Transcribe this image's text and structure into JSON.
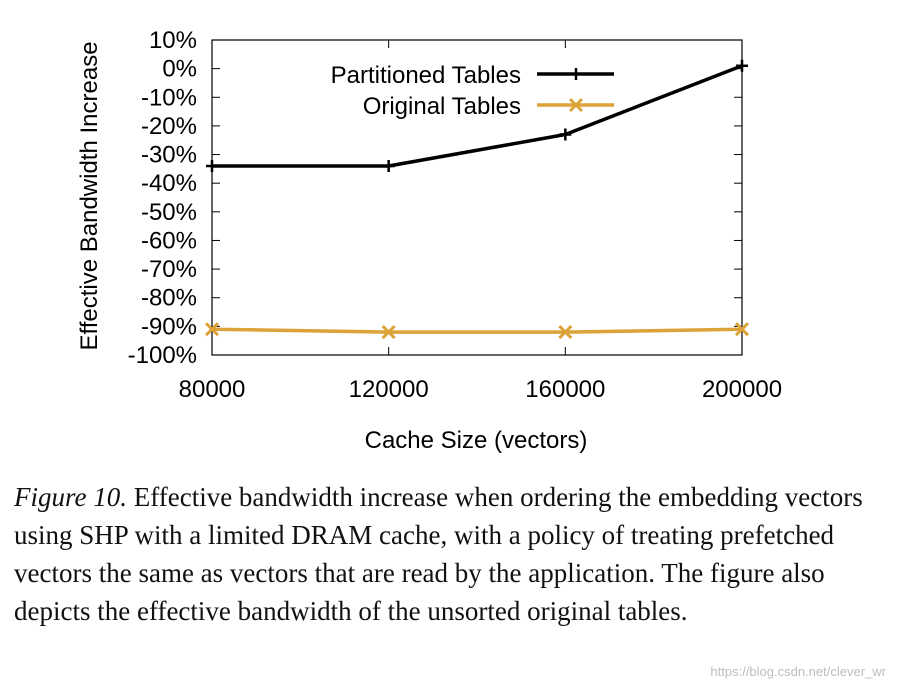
{
  "chart_data": {
    "type": "line",
    "xlabel": "Cache Size (vectors)",
    "ylabel": "Effective Bandwidth Increase",
    "categories": [
      "80000",
      "120000",
      "160000",
      "200000"
    ],
    "x": [
      80000,
      120000,
      160000,
      200000
    ],
    "xlim": [
      80000,
      200000
    ],
    "ylim": [
      -100,
      10
    ],
    "yticks": [
      10,
      0,
      -10,
      -20,
      -30,
      -40,
      -50,
      -60,
      -70,
      -80,
      -90,
      -100
    ],
    "ytick_labels": [
      "10%",
      "0%",
      "-10%",
      "-20%",
      "-30%",
      "-40%",
      "-50%",
      "-60%",
      "-70%",
      "-80%",
      "-90%",
      "-100%"
    ],
    "legend_position": "top-right",
    "grid": false,
    "series": [
      {
        "name": "Partitioned Tables",
        "values": [
          -34,
          -34,
          -23,
          1
        ],
        "color": "#000000",
        "marker": "plus"
      },
      {
        "name": "Original Tables",
        "values": [
          -91,
          -92,
          -92,
          -91
        ],
        "color": "#dba339",
        "marker": "x"
      }
    ]
  },
  "caption": {
    "label": "Figure 10.",
    "text": " Effective bandwidth increase when ordering the embedding vectors using SHP with a limited DRAM cache, with a policy of treating prefetched vectors the same as vectors that are read by the application. The figure also depicts the effective bandwidth of the unsorted original tables."
  },
  "watermark": "https://blog.csdn.net/clever_wr"
}
